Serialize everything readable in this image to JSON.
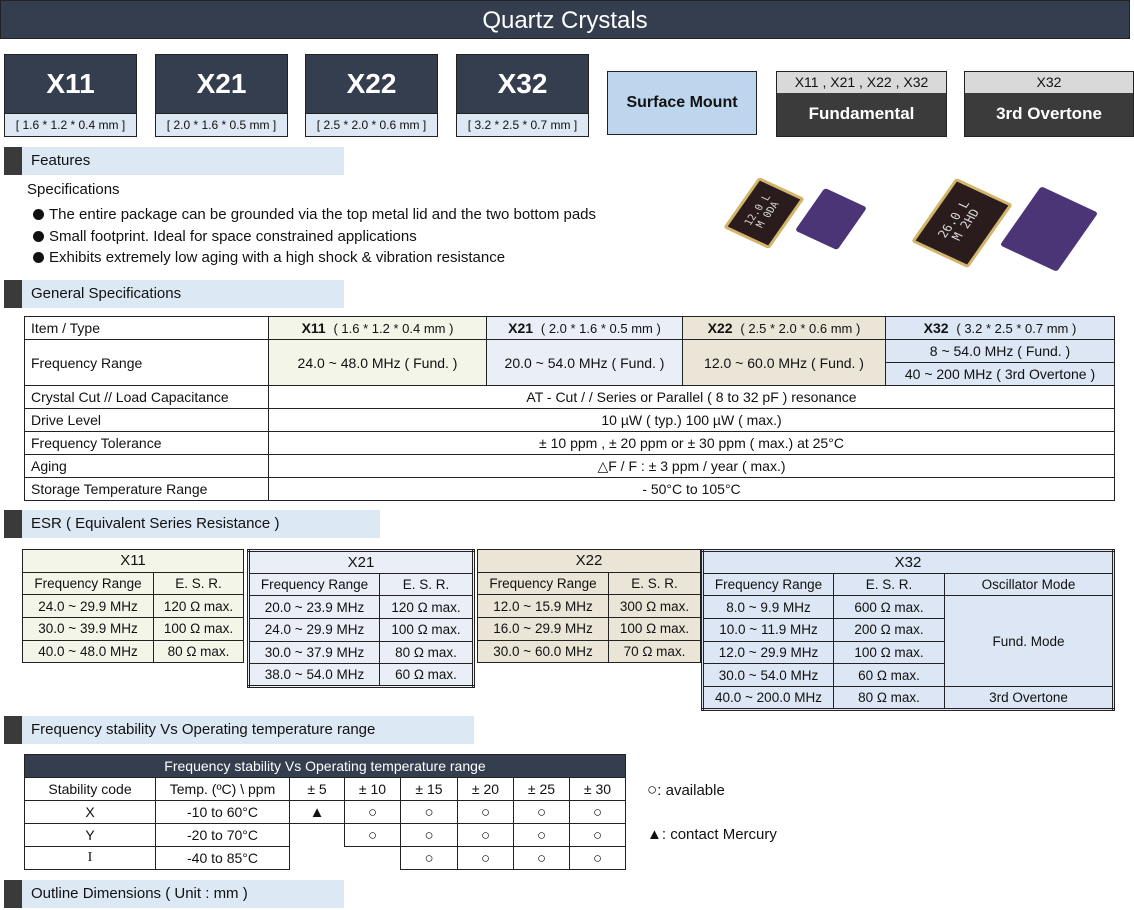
{
  "title": "Quartz  Crystals",
  "products": [
    {
      "name": "X11",
      "dims": "[ 1.6 * 1.2 * 0.4 mm ]"
    },
    {
      "name": "X21",
      "dims": "[ 2.0 * 1.6 * 0.5 mm ]"
    },
    {
      "name": "X22",
      "dims": "[ 2.5 * 2.0 * 0.6 mm ]"
    },
    {
      "name": "X32",
      "dims": "[ 3.2 * 2.5 * 0.7 mm ]"
    }
  ],
  "mount": "Surface Mount",
  "modes": [
    {
      "models": "X11 , X21 , X22 , X32",
      "label": "Fundamental"
    },
    {
      "models": "X32",
      "label": "3rd Overtone"
    }
  ],
  "features": {
    "heading": "Features",
    "subheading": "Specifications",
    "bullets": [
      "The entire package can be grounded via the top metal lid and the two bottom pads",
      "Small footprint. Ideal for space constrained applications",
      "Exhibits extremely low aging with a high shock & vibration resistance"
    ],
    "photo_markings": [
      "12.0 L",
      "M 0DA",
      "26.0 L",
      "M 2HD"
    ]
  },
  "general": {
    "heading": "General Specifications",
    "header": {
      "item": "Item / Type",
      "cols": [
        {
          "name": "X11",
          "dims": "( 1.6 * 1.2 * 0.4 mm )"
        },
        {
          "name": "X21",
          "dims": "( 2.0 * 1.6 * 0.5 mm )"
        },
        {
          "name": "X22",
          "dims": "( 2.5 * 2.0 * 0.6 mm )"
        },
        {
          "name": "X32",
          "dims": "( 3.2 * 2.5 * 0.7 mm )"
        }
      ]
    },
    "freq": {
      "label": "Frequency Range",
      "x11": "24.0 ~ 48.0 MHz ( Fund. )",
      "x21": "20.0 ~ 54.0 MHz ( Fund. )",
      "x22": "12.0 ~ 60.0 MHz  ( Fund. )",
      "x32_fund": "8 ~ 54.0 MHz ( Fund. )",
      "x32_ot": "40 ~ 200 MHz ( 3rd Overtone )"
    },
    "rows": [
      {
        "label": "Crystal Cut // Load Capacitance",
        "value": "AT - Cut  / /  Series or Parallel ( 8 to 32 pF ) resonance"
      },
      {
        "label": "Drive Level",
        "value": "10 µW  ( typ.)     100 µW ( max.)"
      },
      {
        "label": "Frequency Tolerance",
        "value": "± 10 ppm , ± 20 ppm or ± 30 ppm ( max.) at  25°C"
      },
      {
        "label": "Aging",
        "value": "△F / F : ± 3 ppm  /  year ( max.)"
      },
      {
        "label": "Storage Temperature Range",
        "value": "- 50°C to 105°C"
      }
    ]
  },
  "esr": {
    "heading": "ESR ( Equivalent Series Resistance )",
    "col_freq": "Frequency Range",
    "col_esr": "E. S. R.",
    "col_mode": "Oscillator Mode",
    "x11": {
      "name": "X11",
      "rows": [
        [
          "24.0 ~ 29.9 MHz",
          "120 Ω max."
        ],
        [
          "30.0 ~ 39.9 MHz",
          "100 Ω max."
        ],
        [
          "40.0 ~ 48.0 MHz",
          "80 Ω max."
        ]
      ]
    },
    "x21": {
      "name": "X21",
      "rows": [
        [
          "20.0 ~ 23.9 MHz",
          "120 Ω max."
        ],
        [
          "24.0 ~ 29.9 MHz",
          "100 Ω max."
        ],
        [
          "30.0 ~ 37.9 MHz",
          "80 Ω max."
        ],
        [
          "38.0 ~ 54.0 MHz",
          "60 Ω max."
        ]
      ]
    },
    "x22": {
      "name": "X22",
      "rows": [
        [
          "12.0 ~ 15.9 MHz",
          "300 Ω max."
        ],
        [
          "16.0 ~ 29.9 MHz",
          "100 Ω max."
        ],
        [
          "30.0 ~ 60.0 MHz",
          "70 Ω max."
        ]
      ]
    },
    "x32": {
      "name": "X32",
      "rows": [
        [
          "8.0 ~ 9.9 MHz",
          "600 Ω max."
        ],
        [
          "10.0 ~ 11.9 MHz",
          "200 Ω max."
        ],
        [
          "12.0 ~ 29.9 MHz",
          "100 Ω max."
        ],
        [
          "30.0 ~ 54.0 MHz",
          "60 Ω max."
        ],
        [
          "40.0 ~ 200.0 MHz",
          "80 Ω max."
        ]
      ],
      "mode_fund": "Fund. Mode",
      "mode_ot": "3rd Overtone"
    }
  },
  "stability": {
    "heading": "Frequency stability Vs Operating temperature range",
    "table_title": "Frequency stability Vs Operating temperature range",
    "col_code": "Stability code",
    "col_temp": "Temp. (ºC) \\ ppm",
    "ppm": [
      "± 5",
      "± 10",
      "± 15",
      "± 20",
      "± 25",
      "± 30"
    ],
    "rows": [
      {
        "code": "X",
        "temp": "-10  to  60°C",
        "marks": [
          "▲",
          "○",
          "○",
          "○",
          "○",
          "○"
        ]
      },
      {
        "code": "Y",
        "temp": "-20  to  70°C",
        "marks": [
          "",
          "○",
          "○",
          "○",
          "○",
          "○"
        ]
      },
      {
        "code": "I",
        "temp": "-40  to  85°C",
        "marks": [
          "",
          "",
          "○",
          "○",
          "○",
          "○"
        ]
      }
    ],
    "legend": [
      {
        "symbol": "○",
        "text": ": available"
      },
      {
        "symbol": "▲",
        "text": ": contact  Mercury"
      }
    ]
  },
  "outline": {
    "heading": "Outline Dimensions ( Unit : mm )"
  }
}
